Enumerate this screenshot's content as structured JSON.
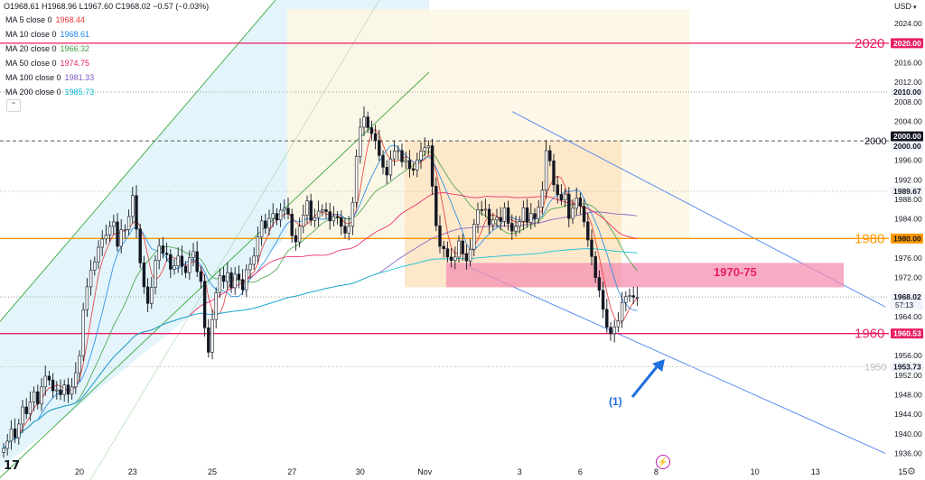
{
  "header": {
    "ohlc": "O1968.61 H1968.96 L1967.60 C1968.02 −0.57 (−0.03%)",
    "ma": [
      {
        "label": "MA 5 close 0",
        "value": "1968.44",
        "color": "#e53935"
      },
      {
        "label": "MA 10 close 0",
        "value": "1968.61",
        "color": "#1e88e5"
      },
      {
        "label": "MA 20 close 0",
        "value": "1966.32",
        "color": "#43a047"
      },
      {
        "label": "MA 50 close 0",
        "value": "1974.75",
        "color": "#e91e63"
      },
      {
        "label": "MA 100 close 0",
        "value": "1981.33",
        "color": "#7e57c2"
      },
      {
        "label": "MA 200 close 0",
        "value": "1985.73",
        "color": "#00bcd4"
      }
    ],
    "collapse_icon": "chevron-up-icon"
  },
  "currency": "USD",
  "chart_data": {
    "type": "line",
    "description_units": "price in USD",
    "ylim": [
      1934,
      2028
    ],
    "y_ticks": [
      2024.0,
      2016.0,
      2012.0,
      2008.0,
      2004.0,
      1996.0,
      1992.0,
      1988.0,
      1984.0,
      1976.0,
      1972.0,
      1964.0,
      1956.0,
      1952.0,
      1948.0,
      1944.0,
      1940.0,
      1936.0
    ],
    "y_tick_labels": [
      "2024.00",
      "2016.00",
      "2012.00",
      "2008.00",
      "2004.00",
      "1996.00",
      "1992.00",
      "1988.00",
      "1984.00",
      "1976.00",
      "1972.00",
      "1964.00",
      "1956.00",
      "1952.00",
      "1948.00",
      "1944.00",
      "1940.00",
      "1936.00"
    ],
    "x_tick_labels": [
      "20",
      "23",
      "25",
      "27",
      "30",
      "Nov",
      "3",
      "6",
      "8",
      "10",
      "13",
      "15"
    ],
    "x_tick_index": [
      20,
      34,
      55,
      76,
      94,
      111,
      136,
      152,
      172,
      198,
      214,
      237
    ],
    "price_tags": [
      {
        "value": 2020.0,
        "label": "2020.00",
        "bg": "#e91e63",
        "fg": "#ffffff"
      },
      {
        "value": 2010.0,
        "label": "2010.00",
        "bg": "#f0f3fa",
        "fg": "#131722"
      },
      {
        "value": 2000.0,
        "label": "2000.00",
        "bg": "#131722",
        "fg": "#ffffff"
      },
      {
        "value": 2000.0,
        "label": "2000.00",
        "bg": "#f0f3fa",
        "fg": "#131722",
        "slot": 2
      },
      {
        "value": 1989.67,
        "label": "1989.67",
        "bg": "#f0f3fa",
        "fg": "#131722"
      },
      {
        "value": 1980.0,
        "label": "1980.00",
        "bg": "#ff9800",
        "fg": "#131722"
      },
      {
        "value": 1968.02,
        "label": "1968.02",
        "bg": "#f0f3fa",
        "fg": "#131722",
        "sub": "57:13"
      },
      {
        "value": 1960.53,
        "label": "1960.53",
        "bg": "#e91e63",
        "fg": "#ffffff"
      },
      {
        "value": 1953.73,
        "label": "1953.73",
        "bg": "#f0f3fa",
        "fg": "#131722"
      }
    ],
    "horizontal_levels": [
      {
        "value": 2020,
        "label": "2020",
        "color": "#e91e63",
        "style": "solid"
      },
      {
        "value": 2010,
        "label": "",
        "color": "#9e9e9e",
        "style": "dotted"
      },
      {
        "value": 2000,
        "label": "2000",
        "color": "#555555",
        "style": "dashed"
      },
      {
        "value": 1989.67,
        "label": "",
        "color": "#bdbdbd",
        "style": "dotted"
      },
      {
        "value": 1980,
        "label": "1980",
        "color": "#ff9800",
        "style": "solid"
      },
      {
        "value": 1968.02,
        "label": "",
        "color": "#9e9e9e",
        "style": "dotted"
      },
      {
        "value": 1960.53,
        "label": "1960",
        "color": "#e91e63",
        "style": "solid"
      },
      {
        "value": 1953.73,
        "label": "1950",
        "color": "#bdbdbd",
        "style": "dotted"
      }
    ],
    "zone_label": "1970-75",
    "zone_range": [
      1970,
      1975
    ],
    "wave_label": "(1)",
    "candles_closes": [
      1937.0,
      1938.5,
      1941.0,
      1939.2,
      1942.0,
      1945.5,
      1944.1,
      1946.5,
      1948.6,
      1946.1,
      1949.6,
      1951.8,
      1951.0,
      1948.8,
      1949.0,
      1948.0,
      1950.0,
      1948.1,
      1949.6,
      1952.5,
      1956.0,
      1965.4,
      1970.1,
      1973.5,
      1975.2,
      1978.2,
      1979.9,
      1980.7,
      1982.5,
      1983.4,
      1978.4,
      1981.8,
      1981.8,
      1984.5,
      1988.8,
      1981.9,
      1975.0,
      1970.1,
      1966.7,
      1970.0,
      1975.5,
      1978.5,
      1977.0,
      1976.7,
      1973.7,
      1974.4,
      1976.4,
      1974.3,
      1973.0,
      1976.1,
      1977.3,
      1973.2,
      1971.2,
      1961.7,
      1956.7,
      1963.4,
      1968.9,
      1972.4,
      1971.2,
      1973.0,
      1969.9,
      1972.7,
      1971.6,
      1969.5,
      1973.6,
      1974.7,
      1976.4,
      1980.3,
      1983.6,
      1982.1,
      1984.1,
      1985.1,
      1983.8,
      1985.8,
      1986.2,
      1985.0,
      1980.6,
      1979.3,
      1982.5,
      1984.8,
      1987.7,
      1983.7,
      1984.3,
      1985.6,
      1985.9,
      1985.5,
      1983.6,
      1984.5,
      1984.3,
      1982.5,
      1981.1,
      1982.5,
      1987.4,
      1996.8,
      2002.8,
      2004.9,
      2002.7,
      2001.5,
      2000.1,
      1997.0,
      1994.6,
      1993.0,
      1996.3,
      1997.9,
      1998.0,
      1995.7,
      1996.0,
      1994.3,
      1994.0,
      1996.1,
      1997.9,
      1998.6,
      1999.0,
      1990.7,
      1982.6,
      1978.4,
      1977.9,
      1976.2,
      1975.5,
      1976.2,
      1979.5,
      1976.9,
      1975.4,
      1977.8,
      1982.9,
      1985.9,
      1985.8,
      1986.0,
      1982.8,
      1983.8,
      1984.3,
      1983.5,
      1986.3,
      1983.1,
      1981.5,
      1982.5,
      1983.5,
      1986.3,
      1983.3,
      1985.1,
      1984.1,
      1986.4,
      1989.9,
      1998.0,
      1995.9,
      1991.0,
      1989.0,
      1987.9,
      1989.1,
      1984.1,
      1986.2,
      1988.3,
      1986.6,
      1983.4,
      1979.7,
      1976.3,
      1972.0,
      1969.4,
      1965.5,
      1961.8,
      1960.5,
      1961.9,
      1963.1,
      1966.9,
      1968.1,
      1968.3,
      1968.0,
      1968.0
    ]
  }
}
